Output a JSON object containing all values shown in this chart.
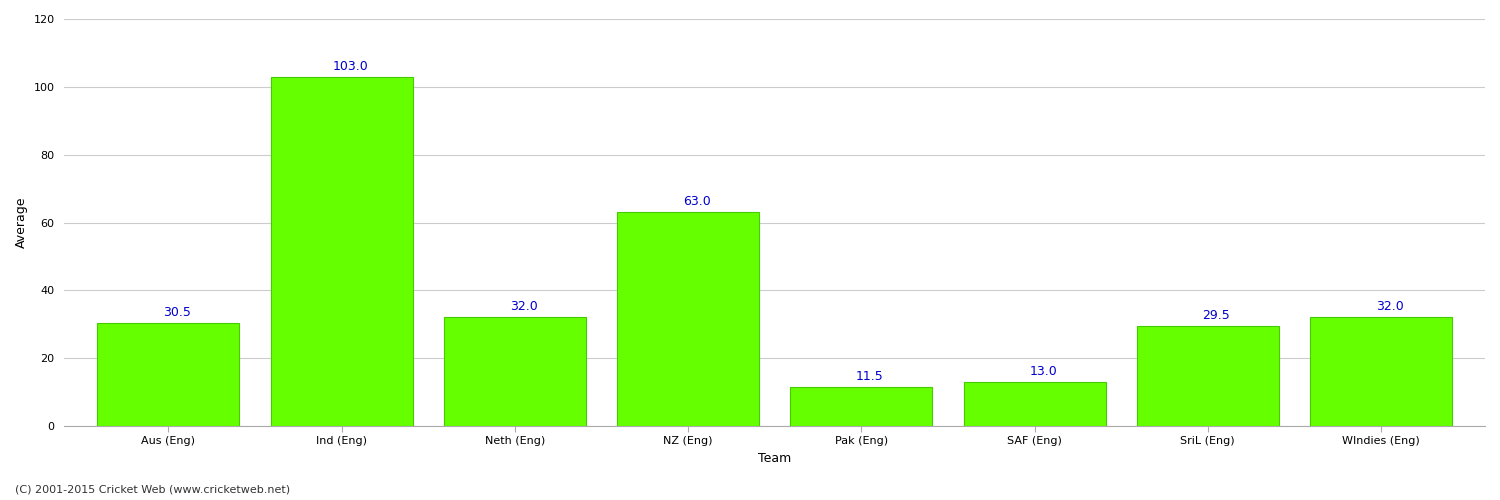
{
  "categories": [
    "Aus (Eng)",
    "Ind (Eng)",
    "Neth (Eng)",
    "NZ (Eng)",
    "Pak (Eng)",
    "SAF (Eng)",
    "SriL (Eng)",
    "WIndies (Eng)"
  ],
  "values": [
    30.5,
    103.0,
    32.0,
    63.0,
    11.5,
    13.0,
    29.5,
    32.0
  ],
  "bar_color": "#66ff00",
  "label_color": "#0000cc",
  "xlabel": "Team",
  "ylabel": "Average",
  "ylim": [
    0,
    120
  ],
  "yticks": [
    0,
    20,
    40,
    60,
    80,
    100,
    120
  ],
  "grid_color": "#cccccc",
  "background_color": "#ffffff",
  "bar_edge_color": "#44cc00",
  "footer": "(C) 2001-2015 Cricket Web (www.cricketweb.net)",
  "label_fontsize": 9,
  "axis_label_fontsize": 9,
  "tick_fontsize": 8,
  "bar_width": 0.82
}
